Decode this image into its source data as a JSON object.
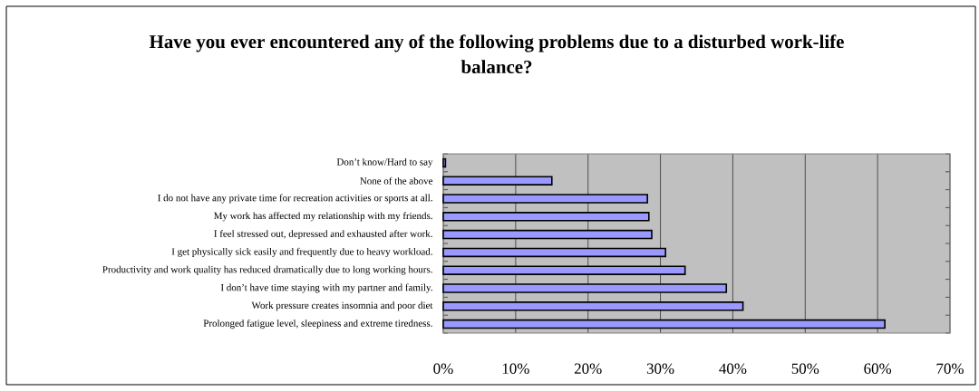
{
  "chart_data": {
    "type": "bar",
    "orientation": "horizontal",
    "title": "Have you ever encountered any of the following problems due to a disturbed work-life balance?",
    "categories": [
      "Don’t know/Hard to say",
      "None of the above",
      "I do not have any private time for recreation activities or sports at all.",
      "My work has affected my relationship with my friends.",
      "I feel stressed out, depressed and exhausted after work.",
      "I get physically sick easily and frequently due to heavy workload.",
      "Productivity and work quality has reduced dramatically due to long working hours.",
      "I don’t have time staying with my partner and family.",
      "Work pressure creates insomnia and poor diet",
      "Prolonged fatigue level, sleepiness and extreme tiredness."
    ],
    "values": [
      0.3,
      15,
      28.2,
      28.4,
      28.8,
      30.7,
      33.4,
      39.1,
      41.4,
      61
    ],
    "color": "#9999ff",
    "xlim": [
      0,
      70
    ],
    "xticks": [
      {
        "value": 0,
        "label": "0%"
      },
      {
        "value": 10,
        "label": "10%"
      },
      {
        "value": 20,
        "label": "20%"
      },
      {
        "value": 30,
        "label": "30%"
      },
      {
        "value": 40,
        "label": "40%"
      },
      {
        "value": 50,
        "label": "50%"
      },
      {
        "value": 60,
        "label": "60%"
      },
      {
        "value": 70,
        "label": "70%"
      }
    ],
    "grid": "x"
  }
}
